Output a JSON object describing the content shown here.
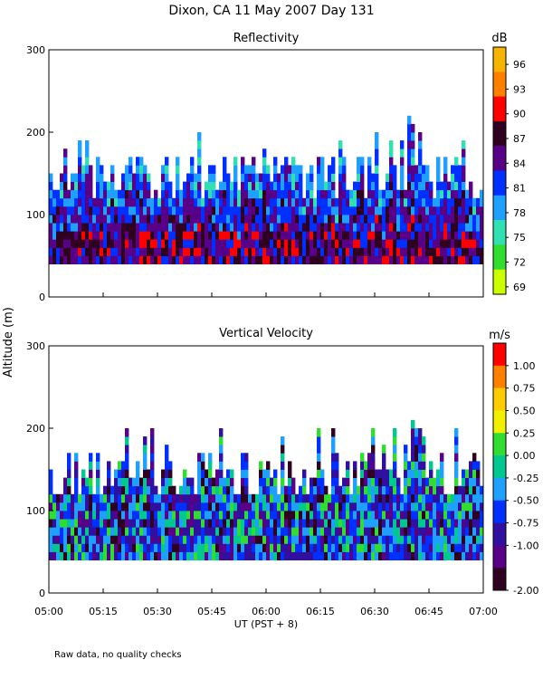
{
  "title": "Dixon, CA 11 May 2007  Day 131",
  "footnote": "Raw data, no quality checks",
  "chart_data": [
    {
      "type": "heatmap",
      "title": "Reflectivity",
      "ylabel": "Altitude (m)",
      "xlabel": "UT  (PST + 8)",
      "xlim_minutes": [
        0,
        120
      ],
      "ylim": [
        0,
        300
      ],
      "yticks": [
        0,
        100,
        200,
        300
      ],
      "xticks": [
        "05:00",
        "05:15",
        "05:30",
        "05:45",
        "06:00",
        "06:15",
        "06:30",
        "06:45",
        "07:00"
      ],
      "data_range_m": [
        40,
        240
      ],
      "colorbar": {
        "unit": "dB",
        "tick_labels": [
          "96",
          "93",
          "90",
          "87",
          "84",
          "81",
          "78",
          "75",
          "72",
          "69"
        ],
        "colors": [
          "#f5b400",
          "#ff8000",
          "#ff0000",
          "#300020",
          "#580088",
          "#0030ff",
          "#1fa0ff",
          "#30e0b0",
          "#30dd30",
          "#ccff00"
        ]
      }
    },
    {
      "type": "heatmap",
      "title": "Vertical Velocity",
      "ylabel": "Altitude (m)",
      "xlabel": "UT  (PST + 8)",
      "xlim_minutes": [
        0,
        120
      ],
      "ylim": [
        0,
        300
      ],
      "yticks": [
        0,
        100,
        200,
        300
      ],
      "xticks": [
        "05:00",
        "05:15",
        "05:30",
        "05:45",
        "06:00",
        "06:15",
        "06:30",
        "06:45",
        "07:00"
      ],
      "data_range_m": [
        40,
        240
      ],
      "colorbar": {
        "unit": "m/s",
        "tick_labels": [
          "1.00",
          "0.75",
          "0.50",
          "0.25",
          "0.00",
          "-0.25",
          "-0.50",
          "-0.75",
          "-1.00",
          "-2.00"
        ],
        "colors": [
          "#ff0000",
          "#ff8000",
          "#ffcc00",
          "#f0f000",
          "#30dd30",
          "#00c890",
          "#1fa0ff",
          "#0030ff",
          "#3010a0",
          "#580088",
          "#300020"
        ]
      }
    }
  ],
  "colors": {
    "axis": "#000000",
    "background": "#ffffff"
  }
}
